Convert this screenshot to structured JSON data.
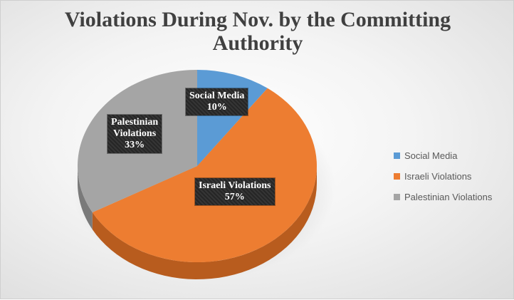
{
  "chart_data": {
    "type": "pie",
    "title_lines": [
      "Violations During Nov. by the Committing",
      "Authority"
    ],
    "slices": [
      {
        "name": "Social Media",
        "value": 10,
        "label": "Social Media",
        "percent_label": "10%",
        "color": "#5b9bd5",
        "side_color": "#41719c"
      },
      {
        "name": "Israeli Violations",
        "value": 57,
        "label": "Israeli Violations",
        "percent_label": "57%",
        "color": "#ed7d31",
        "side_color": "#b85c1e"
      },
      {
        "name": "Palestinian Violations",
        "value": 33,
        "label_lines": [
          "Palestinian",
          "Violations"
        ],
        "percent_label": "33%",
        "color": "#a5a5a5",
        "side_color": "#7a7a7a"
      }
    ],
    "legend": {
      "position": "right",
      "items": [
        "Social Media",
        "Israeli Violations",
        "Palestinian Violations"
      ]
    },
    "style": "3d"
  }
}
